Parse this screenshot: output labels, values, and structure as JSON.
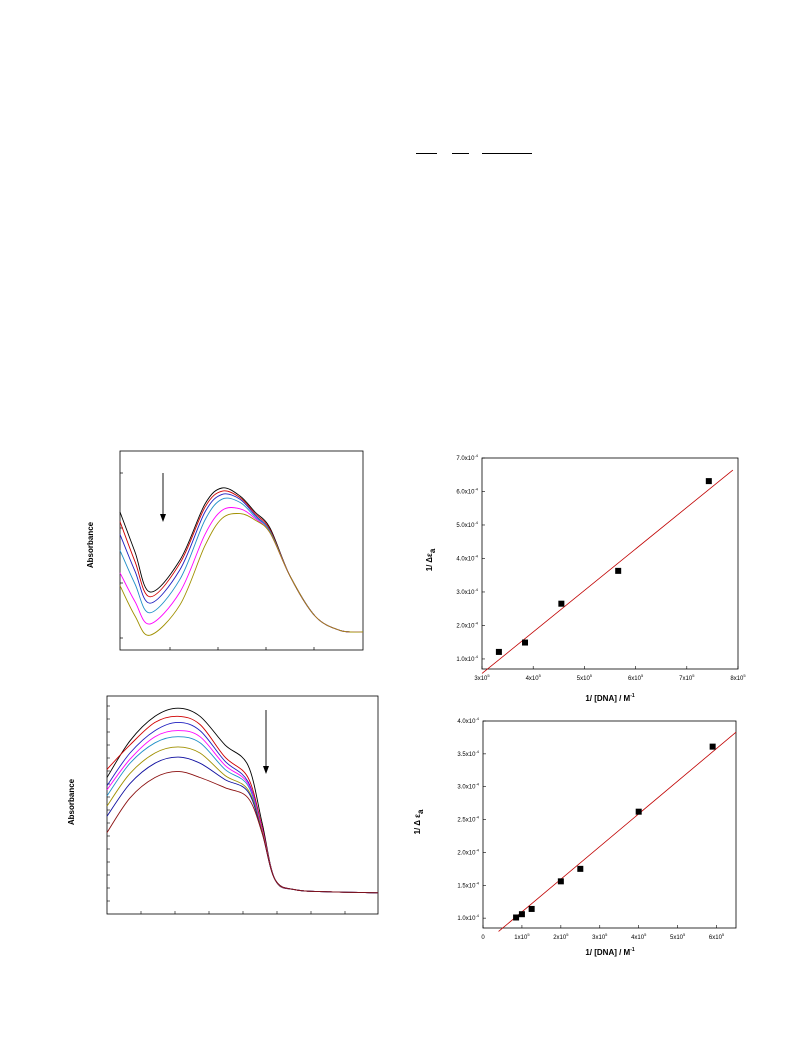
{
  "chart_data": [
    {
      "type": "line",
      "ylabel": "Absorbance",
      "annotations": [
        "downward arrow"
      ],
      "series": [
        {
          "color": "#000000",
          "y": [
            0.8,
            0.55,
            0.3,
            0.5,
            0.85,
            0.95,
            0.9,
            0.8,
            0.7,
            0.4,
            0.15,
            0.06,
            0.05
          ]
        },
        {
          "color": "#d00000",
          "y": [
            0.74,
            0.49,
            0.27,
            0.48,
            0.83,
            0.93,
            0.89,
            0.79,
            0.69,
            0.4,
            0.15,
            0.06,
            0.05
          ]
        },
        {
          "color": "#2020c0",
          "y": [
            0.66,
            0.43,
            0.23,
            0.44,
            0.8,
            0.91,
            0.88,
            0.78,
            0.68,
            0.4,
            0.15,
            0.06,
            0.05
          ]
        },
        {
          "color": "#2090c8",
          "y": [
            0.56,
            0.35,
            0.17,
            0.38,
            0.75,
            0.88,
            0.86,
            0.77,
            0.68,
            0.4,
            0.15,
            0.06,
            0.05
          ]
        },
        {
          "color": "#ff00ff",
          "y": [
            0.42,
            0.24,
            0.1,
            0.3,
            0.66,
            0.81,
            0.82,
            0.76,
            0.67,
            0.4,
            0.15,
            0.06,
            0.05
          ]
        },
        {
          "color": "#a09000",
          "y": [
            0.34,
            0.15,
            0.03,
            0.22,
            0.59,
            0.76,
            0.79,
            0.75,
            0.67,
            0.4,
            0.15,
            0.06,
            0.05
          ]
        }
      ]
    },
    {
      "type": "scatter",
      "xlabel": "1/ [DNA]  / M",
      "xlabel_sup": "-1",
      "ylabel": "1/ Δε",
      "ylabel_sub": "a",
      "xlim": [
        300000,
        800000
      ],
      "ylim": [
        7e-05,
        0.0007
      ],
      "xticks": [
        "3x10",
        "4x10",
        "5x10",
        "6x10",
        "7x10",
        "8x10"
      ],
      "xticks_sup": "5",
      "yticks": [
        "1.0x10",
        "2.0x10",
        "3.0x10",
        "4.0x10",
        "5.0x10",
        "6.0x10",
        "7.0x10"
      ],
      "yticks_sup": "-4",
      "points": [
        {
          "x": 333000,
          "y": 0.000121
        },
        {
          "x": 384000,
          "y": 0.000149
        },
        {
          "x": 455000,
          "y": 0.000265
        },
        {
          "x": 566000,
          "y": 0.000363
        },
        {
          "x": 743000,
          "y": 0.000631
        }
      ],
      "fit": {
        "x": [
          300000,
          790000
        ],
        "y": [
          5.66e-05,
          0.000664
        ]
      },
      "fit_color": "#c00000"
    },
    {
      "type": "line",
      "ylabel": "Absorbance",
      "annotations": [
        "downward arrow"
      ],
      "series": [
        {
          "color": "#000000",
          "y": [
            0.62,
            0.8,
            0.92,
            0.96,
            0.92,
            0.78,
            0.68,
            0.4,
            0.12,
            0.07,
            0.06,
            0.055
          ]
        },
        {
          "color": "#d00000",
          "y": [
            0.66,
            0.78,
            0.89,
            0.92,
            0.88,
            0.72,
            0.62,
            0.38,
            0.12,
            0.07,
            0.06,
            0.055
          ]
        },
        {
          "color": "#2020c0",
          "y": [
            0.58,
            0.74,
            0.85,
            0.89,
            0.85,
            0.7,
            0.6,
            0.37,
            0.12,
            0.07,
            0.06,
            0.055
          ]
        },
        {
          "color": "#ff00ff",
          "y": [
            0.56,
            0.71,
            0.82,
            0.85,
            0.82,
            0.68,
            0.59,
            0.37,
            0.12,
            0.07,
            0.06,
            0.055
          ]
        },
        {
          "color": "#2090c8",
          "y": [
            0.53,
            0.69,
            0.79,
            0.82,
            0.79,
            0.66,
            0.58,
            0.36,
            0.12,
            0.07,
            0.06,
            0.055
          ]
        },
        {
          "color": "#a09000",
          "y": [
            0.48,
            0.64,
            0.74,
            0.77,
            0.74,
            0.63,
            0.56,
            0.36,
            0.12,
            0.07,
            0.06,
            0.055
          ]
        },
        {
          "color": "#1010a0",
          "y": [
            0.43,
            0.59,
            0.69,
            0.72,
            0.69,
            0.61,
            0.55,
            0.35,
            0.12,
            0.07,
            0.06,
            0.055
          ]
        },
        {
          "color": "#8b1010",
          "y": [
            0.35,
            0.52,
            0.62,
            0.65,
            0.62,
            0.57,
            0.52,
            0.35,
            0.12,
            0.07,
            0.06,
            0.055
          ]
        }
      ]
    },
    {
      "type": "scatter",
      "xlabel": "1/ [DNA]  / M",
      "xlabel_sup": "-1",
      "ylabel": "1/ Δ ε",
      "ylabel_sub": "a",
      "xlim": [
        0,
        650000
      ],
      "ylim": [
        8.5e-05,
        0.0004
      ],
      "xticks": [
        "0",
        "1x10",
        "2x10",
        "3x10",
        "4x10",
        "5x10",
        "6x10"
      ],
      "xticks_sup": "5",
      "xtick_values": [
        0,
        100000,
        200000,
        300000,
        400000,
        500000,
        600000
      ],
      "yticks": [
        "1.0x10",
        "1.5x10",
        "2.0x10",
        "2.5x10",
        "3.0x10",
        "3.5x10",
        "4.0x10"
      ],
      "yticks_sup": "-4",
      "points": [
        {
          "x": 85000,
          "y": 0.000101
        },
        {
          "x": 100000,
          "y": 0.000106
        },
        {
          "x": 125000,
          "y": 0.000114
        },
        {
          "x": 200000,
          "y": 0.000156
        },
        {
          "x": 250000,
          "y": 0.000175
        },
        {
          "x": 400000,
          "y": 0.000262
        },
        {
          "x": 590000,
          "y": 0.000361
        }
      ],
      "fit": {
        "x": [
          40000,
          650000
        ],
        "y": [
          7.97e-05,
          0.000383
        ]
      },
      "fit_color": "#c00000"
    }
  ],
  "equation_lines": [
    {
      "color": "#000000"
    },
    {
      "color": "#000000"
    },
    {
      "color": "#000000"
    }
  ]
}
